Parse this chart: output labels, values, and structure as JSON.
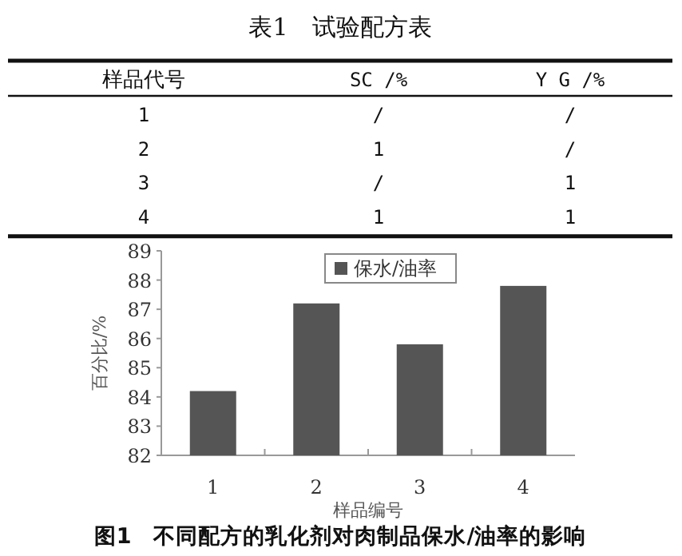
{
  "chart_data": [
    {
      "type": "heatmap",
      "title": "表1　试验配方表",
      "ylabel": "样品代号",
      "categories": [
        "SC /%",
        "Y G /%"
      ],
      "y_categories": [
        "1",
        "2",
        "3",
        "4"
      ],
      "cells": [
        [
          null,
          null
        ],
        [
          1,
          null
        ],
        [
          null,
          1
        ],
        [
          1,
          1
        ]
      ],
      "cell_labels": [
        [
          "/",
          "/"
        ],
        [
          "1",
          "/"
        ],
        [
          "/",
          "1"
        ],
        [
          "1",
          "1"
        ]
      ]
    },
    {
      "type": "bar",
      "title": "图1　不同配方的乳化剂对肉制品保水/油率的影响",
      "xlabel": "样品编号",
      "ylabel": "百分比/%",
      "categories": [
        "1",
        "2",
        "3",
        "4"
      ],
      "series": [
        {
          "name": "保水/油率",
          "color": "#555555",
          "values": [
            84.2,
            87.2,
            85.8,
            87.8
          ]
        }
      ],
      "ylim": [
        82,
        89
      ],
      "yticks": [
        82,
        83,
        84,
        85,
        86,
        87,
        88,
        89
      ],
      "legend": "top"
    }
  ]
}
